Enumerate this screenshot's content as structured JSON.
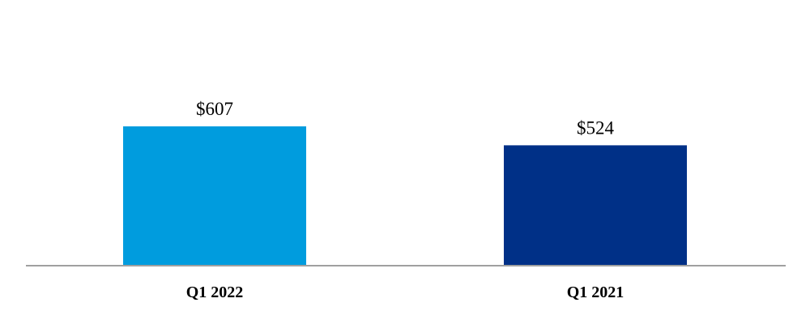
{
  "chart_data": {
    "type": "bar",
    "title": "",
    "xlabel": "",
    "ylabel": "",
    "categories": [
      "Q1 2022",
      "Q1 2021"
    ],
    "values": [
      607,
      524
    ],
    "data_labels": [
      "$607",
      "$524"
    ],
    "colors": [
      "#009cde",
      "#003087"
    ],
    "baseline_color": "#a0a0a0",
    "ylim": [
      0,
      1000
    ],
    "grid": false,
    "legend": "none"
  }
}
